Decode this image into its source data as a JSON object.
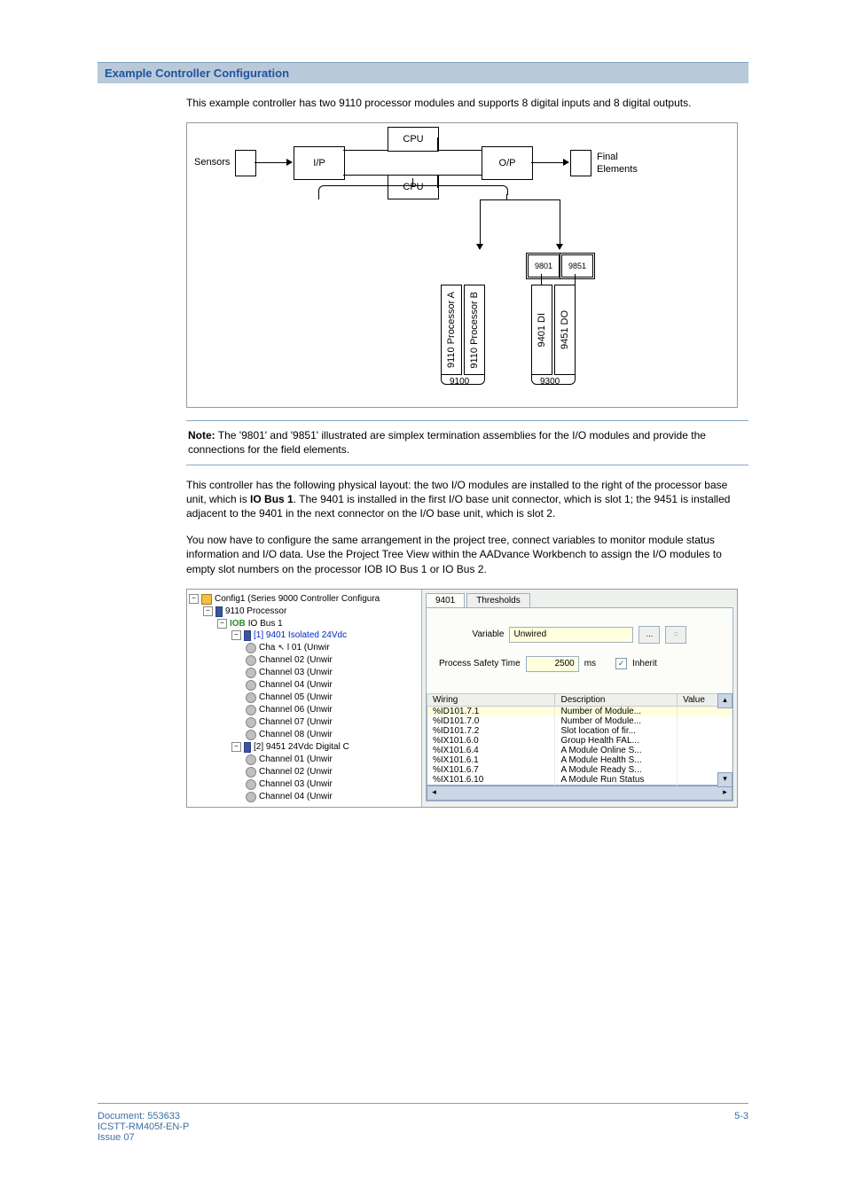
{
  "section_title": "Example Controller Configuration",
  "para1": "This example controller has two 9110 processor modules and supports 8 digital inputs and 8 digital outputs.",
  "note": {
    "label": "Note:",
    "text": " The '9801' and '9851' illustrated are simplex termination assemblies for the I/O modules and provide the connections for the field elements."
  },
  "para2a": "This controller has the following physical layout: the two I/O modules are installed to the right of the processor base unit, which is ",
  "para2b": "IO Bus 1",
  "para2c": ". The 9401 is installed in the first I/O base unit connector, which is slot 1; the 9451 is installed adjacent to the 9401 in the next connector on the I/O base unit, which is slot 2.",
  "para3": "You now have to configure the same arrangement in the project tree, connect variables to monitor module status information and I/O data. Use the Project Tree View within the AADvance Workbench to assign the I/O modules to empty slot numbers on the processor IOB IO Bus 1 or IO Bus 2.",
  "diagram": {
    "labels": {
      "sensors": "Sensors",
      "ip": "I/P",
      "cpu": "CPU",
      "op": "O/P",
      "final": "Final",
      "elements": "Elements"
    },
    "boxes": {
      "a9801": "9801",
      "a9851": "9851",
      "procA": "9110 Processor A",
      "procB": "9110 Processor B",
      "di": "9401 DI",
      "do": "9451 DO",
      "b9100": "9100",
      "b9300": "9300"
    }
  },
  "tree": {
    "root": "Config1 (Series 9000 Controller Configura",
    "proc": "9110 Processor",
    "iob": "IO Bus 1",
    "iob_prefix": "IOB",
    "mod1": "[1] 9401 Isolated 24Vdc",
    "mod2": "[2] 9451 24Vdc Digital C",
    "channels1": [
      "Channel 01 (Unwir",
      "Channel 02 (Unwir",
      "Channel 03 (Unwir",
      "Channel 04 (Unwir",
      "Channel 05 (Unwir",
      "Channel 06 (Unwir",
      "Channel 07 (Unwir",
      "Channel 08 (Unwir"
    ],
    "ch1_first_prefix": "Cha",
    "channels2": [
      "Channel 01 (Unwir",
      "Channel 02 (Unwir",
      "Channel 03 (Unwir",
      "Channel 04 (Unwir"
    ]
  },
  "tabs": {
    "t1": "9401",
    "t2": "Thresholds"
  },
  "form": {
    "var_label": "Variable",
    "var_value": "Unwired",
    "pst_label": "Process Safety Time",
    "pst_value": "2500",
    "pst_unit": "ms",
    "inherit": "Inherit",
    "dots": "...",
    "eq": "="
  },
  "grid": {
    "headers": [
      "Wiring",
      "Description",
      "Value"
    ],
    "rows": [
      [
        "%ID101.7.1",
        "Number of Module...",
        ""
      ],
      [
        "%ID101.7.0",
        "Number of Module...",
        ""
      ],
      [
        "%ID101.7.2",
        "Slot location of fir...",
        ""
      ],
      [
        "%IX101.6.0",
        "Group Health FAL...",
        ""
      ],
      [
        "%IX101.6.4",
        "A Module Online S...",
        ""
      ],
      [
        "%IX101.6.1",
        "A Module Health S...",
        ""
      ],
      [
        "%IX101.6.7",
        "A Module Ready S...",
        ""
      ],
      [
        "%IX101.6.10",
        "A Module Run Status",
        ""
      ]
    ]
  },
  "footer": {
    "doc": "Document: 553633",
    "code": "ICSTT-RM405f-EN-P",
    "issue": "Issue 07",
    "page": "5-3"
  }
}
